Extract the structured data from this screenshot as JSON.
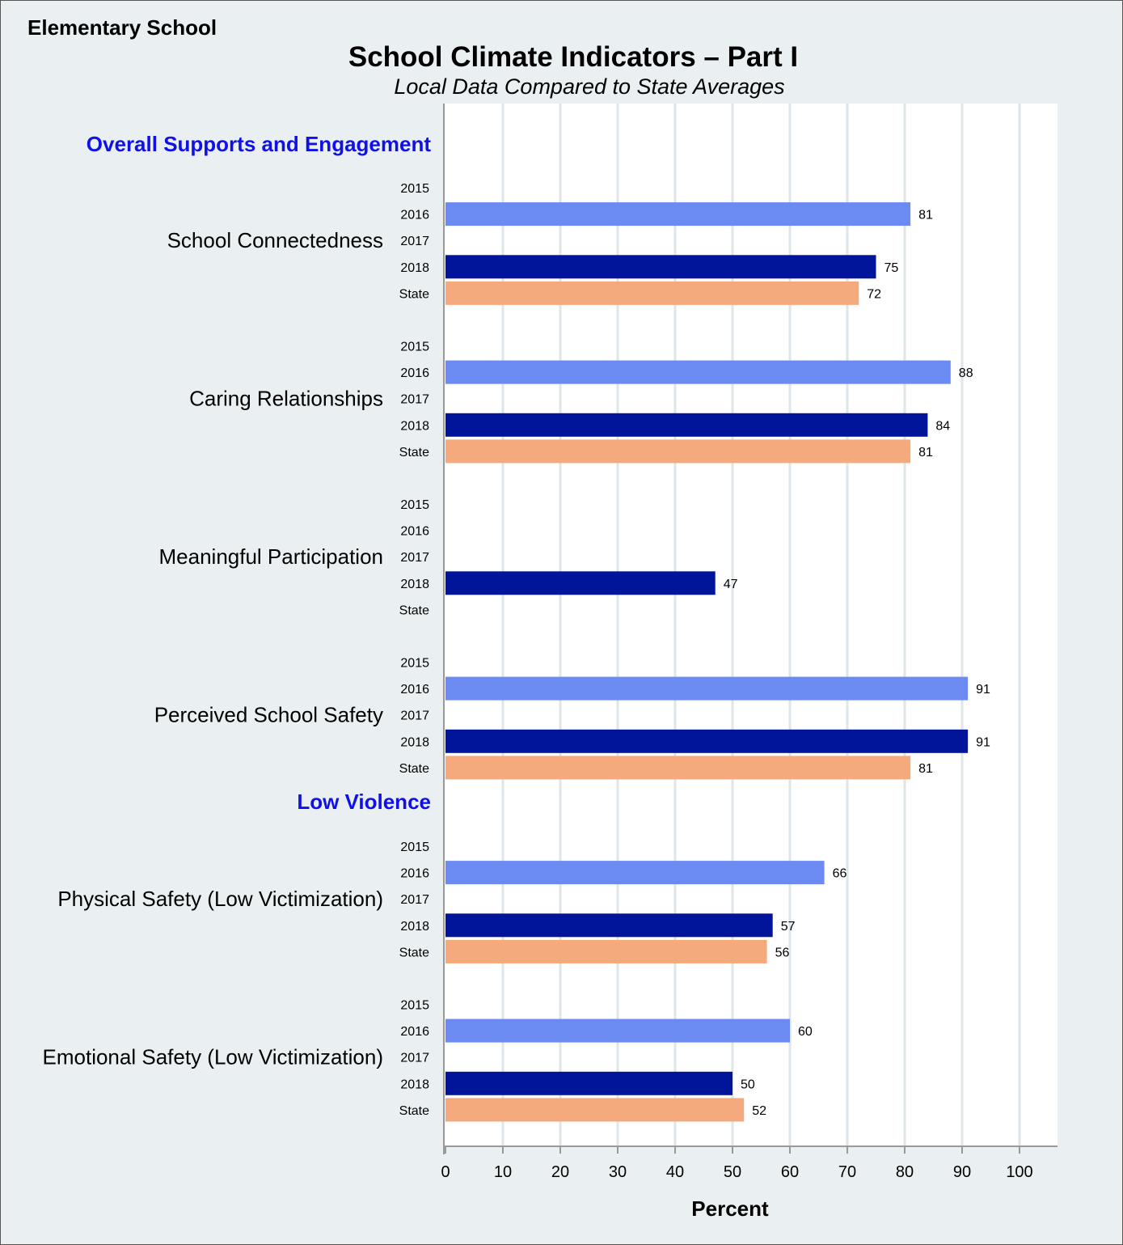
{
  "page": {
    "school_label": "Elementary School"
  },
  "colors": {
    "2015": "#b8c6f5",
    "2016": "#6b8af2",
    "2017": "#3558d8",
    "2018": "#001599",
    "State": "#f4aa7c",
    "section_text": "#1010e8",
    "grid": "#dfe6ea",
    "axis": "#999999",
    "frame_bg": "#eaf0f2",
    "plot_bg": "#ffffff"
  },
  "chart_data": {
    "type": "bar",
    "orientation": "horizontal",
    "title": "School Climate Indicators – Part I",
    "subtitle": "Local Data Compared to State Averages",
    "xlabel": "Percent",
    "xlim": [
      0,
      100
    ],
    "xticks": [
      0,
      10,
      20,
      30,
      40,
      50,
      60,
      70,
      80,
      90,
      100
    ],
    "grid": true,
    "row_labels": [
      "2015",
      "2016",
      "2017",
      "2018",
      "State"
    ],
    "sections": [
      {
        "name": "Overall Supports and Engagement",
        "indicators": [
          {
            "name": "School Connectedness",
            "values": {
              "2015": null,
              "2016": 81,
              "2017": null,
              "2018": 75,
              "State": 72
            }
          },
          {
            "name": "Caring Relationships",
            "values": {
              "2015": null,
              "2016": 88,
              "2017": null,
              "2018": 84,
              "State": 81
            }
          },
          {
            "name": "Meaningful Participation",
            "values": {
              "2015": null,
              "2016": null,
              "2017": null,
              "2018": 47,
              "State": null
            }
          },
          {
            "name": "Perceived School Safety",
            "values": {
              "2015": null,
              "2016": 91,
              "2017": null,
              "2018": 91,
              "State": 81
            }
          }
        ]
      },
      {
        "name": "Low Violence",
        "indicators": [
          {
            "name": "Physical Safety (Low Victimization)",
            "values": {
              "2015": null,
              "2016": 66,
              "2017": null,
              "2018": 57,
              "State": 56
            }
          },
          {
            "name": "Emotional Safety (Low Victimization)",
            "values": {
              "2015": null,
              "2016": 60,
              "2017": null,
              "2018": 50,
              "State": 52
            }
          }
        ]
      }
    ]
  }
}
